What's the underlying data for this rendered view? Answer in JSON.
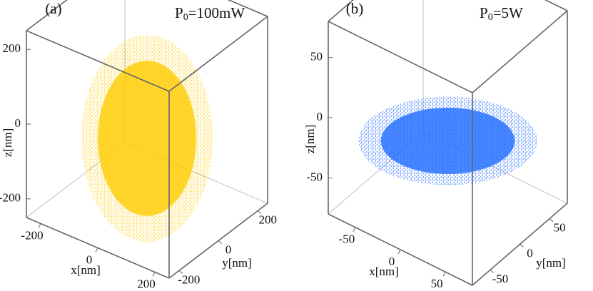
{
  "chart_data": [
    {
      "type": "scatter3d",
      "panel_label": "(a)",
      "annotation": {
        "symbol": "P",
        "subscript": "0",
        "text": "=100mW"
      },
      "x_label": "x[nm]",
      "y_label": "y[nm]",
      "z_label": "z[nm]",
      "color": "#ffcc00",
      "xlim": [
        -250,
        250
      ],
      "ylim": [
        -250,
        250
      ],
      "zlim": [
        -250,
        250
      ],
      "xticks": [
        -200,
        0,
        200
      ],
      "yticks": [
        -200,
        0,
        200
      ],
      "zticks": [
        -200,
        0,
        200
      ]
    },
    {
      "type": "scatter3d",
      "panel_label": "(b)",
      "annotation": {
        "symbol": "P",
        "subscript": "0",
        "text": "=5W"
      },
      "x_label": "x[nm]",
      "y_label": "y[nm]",
      "z_label": "z[nm]",
      "color": "#1f6bff",
      "xlim": [
        -80,
        80
      ],
      "ylim": [
        -80,
        80
      ],
      "zlim": [
        -80,
        80
      ],
      "xticks": [
        -50,
        0,
        50
      ],
      "yticks": [
        -50,
        0,
        50
      ],
      "zticks": [
        -50,
        0,
        50
      ]
    }
  ]
}
